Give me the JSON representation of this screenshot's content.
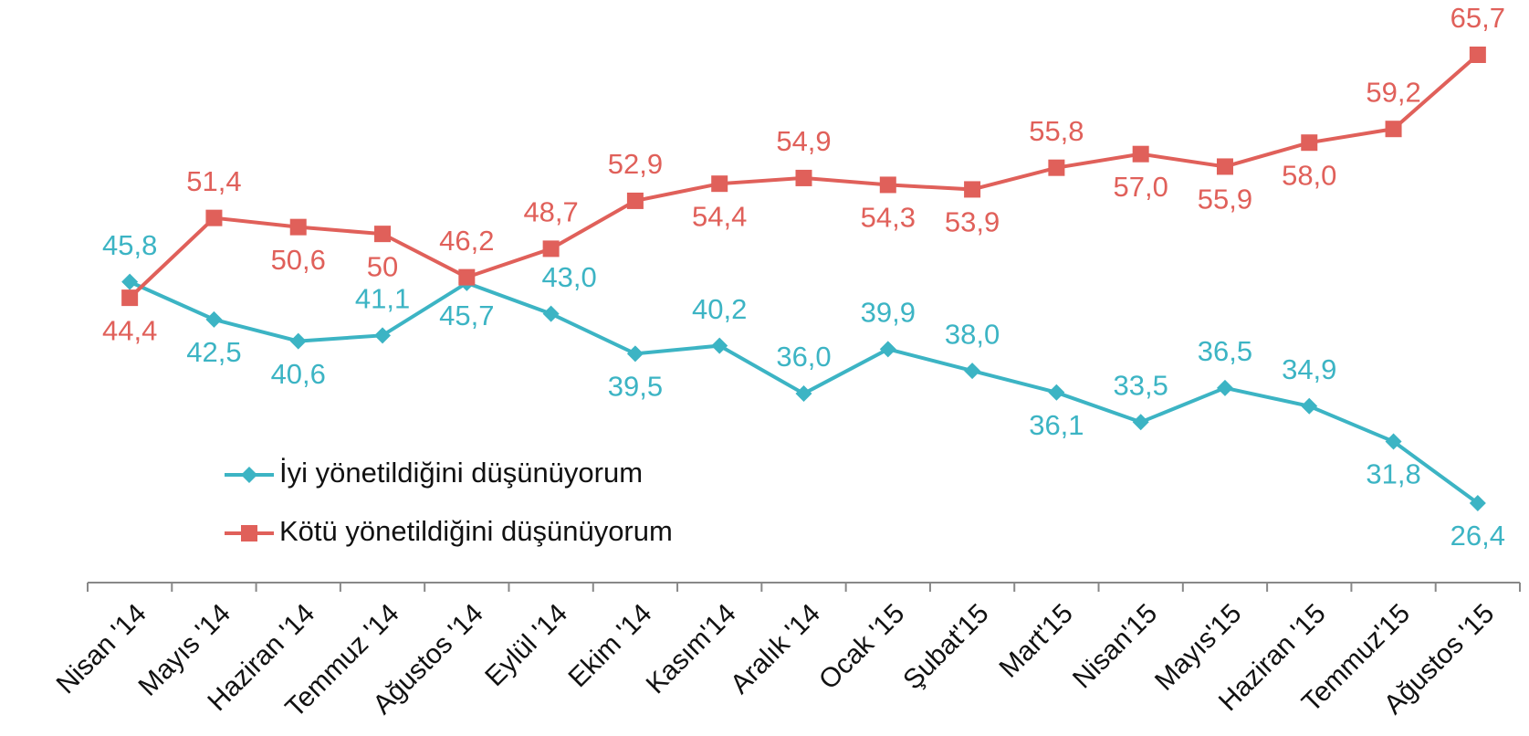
{
  "chart_data": {
    "type": "line",
    "categories": [
      "Nisan '14",
      "Mayıs '14",
      "Haziran '14",
      "Temmuz '14",
      "Ağustos '14",
      "Eylül '14",
      "Ekim '14",
      "Kasım'14",
      "Aralık '14",
      "Ocak '15",
      "Şubat'15",
      "Mart'15",
      "Nisan'15",
      "Mayıs'15",
      "Haziran '15",
      "Temmuz'15",
      "Ağustos '15"
    ],
    "series": [
      {
        "name": "İyi yönetildiğini düşünüyorum",
        "color": "#3cb4c4",
        "marker": "diamond",
        "values": [
          45.8,
          42.5,
          40.6,
          41.1,
          45.7,
          43.0,
          39.5,
          40.2,
          36.0,
          39.9,
          38.0,
          36.1,
          33.5,
          36.5,
          34.9,
          31.8,
          26.4
        ],
        "value_labels": [
          "45,8",
          "42,5",
          "40,6",
          "41,1",
          "45,7",
          "43,0",
          "39,5",
          "40,2",
          "36,0",
          "39,9",
          "38,0",
          "36,1",
          "33,5",
          "36,5",
          "34,9",
          "31,8",
          "26,4"
        ]
      },
      {
        "name": "Kötü yönetildiğini düşünüyorum",
        "color": "#e0605a",
        "marker": "square",
        "values": [
          44.4,
          51.4,
          50.6,
          50,
          46.2,
          48.7,
          52.9,
          54.4,
          54.9,
          54.3,
          53.9,
          55.8,
          57.0,
          55.9,
          58.0,
          59.2,
          65.7
        ],
        "value_labels": [
          "44,4",
          "51,4",
          "50,6",
          "50",
          "46,2",
          "48,7",
          "52,9",
          "54,4",
          "54,9",
          "54,3",
          "53,9",
          "55,8",
          "57,0",
          "55,9",
          "58,0",
          "59,2",
          "65,7"
        ]
      }
    ]
  }
}
